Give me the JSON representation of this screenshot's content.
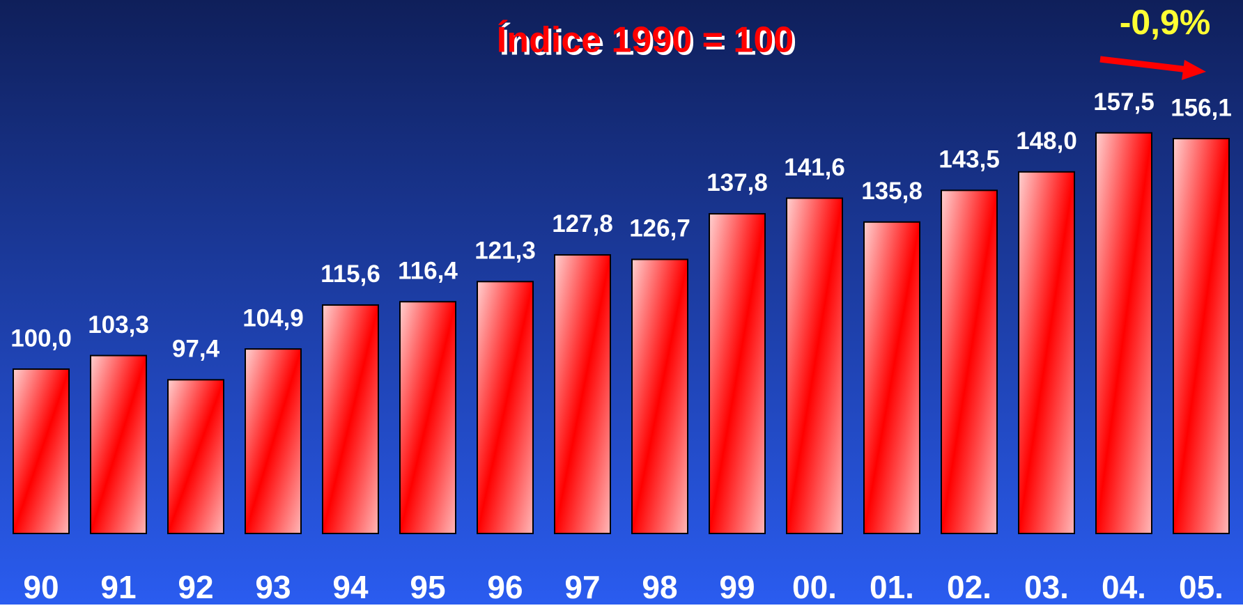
{
  "chart_data": {
    "type": "bar",
    "title": "Índice 1990 = 100",
    "categories": [
      "90",
      "91",
      "92",
      "93",
      "94",
      "95",
      "96",
      "97",
      "98",
      "99",
      "00.",
      "01.",
      "02.",
      "03.",
      "04.",
      "05."
    ],
    "values": [
      100.0,
      103.3,
      97.4,
      104.9,
      115.6,
      116.4,
      121.3,
      127.8,
      126.7,
      137.8,
      141.6,
      135.8,
      143.5,
      148.0,
      157.5,
      156.1
    ],
    "value_labels": [
      "100,0",
      "103,3",
      "97,4",
      "104,9",
      "115,6",
      "116,4",
      "121,3",
      "127,8",
      "126,7",
      "137,8",
      "141,6",
      "135,8",
      "143,5",
      "148,0",
      "157,5",
      "156,1"
    ],
    "color": "#ff0000",
    "ylim": [
      60,
      170
    ],
    "annotation": {
      "text": "-0,9%",
      "color": "#ffff33"
    }
  }
}
